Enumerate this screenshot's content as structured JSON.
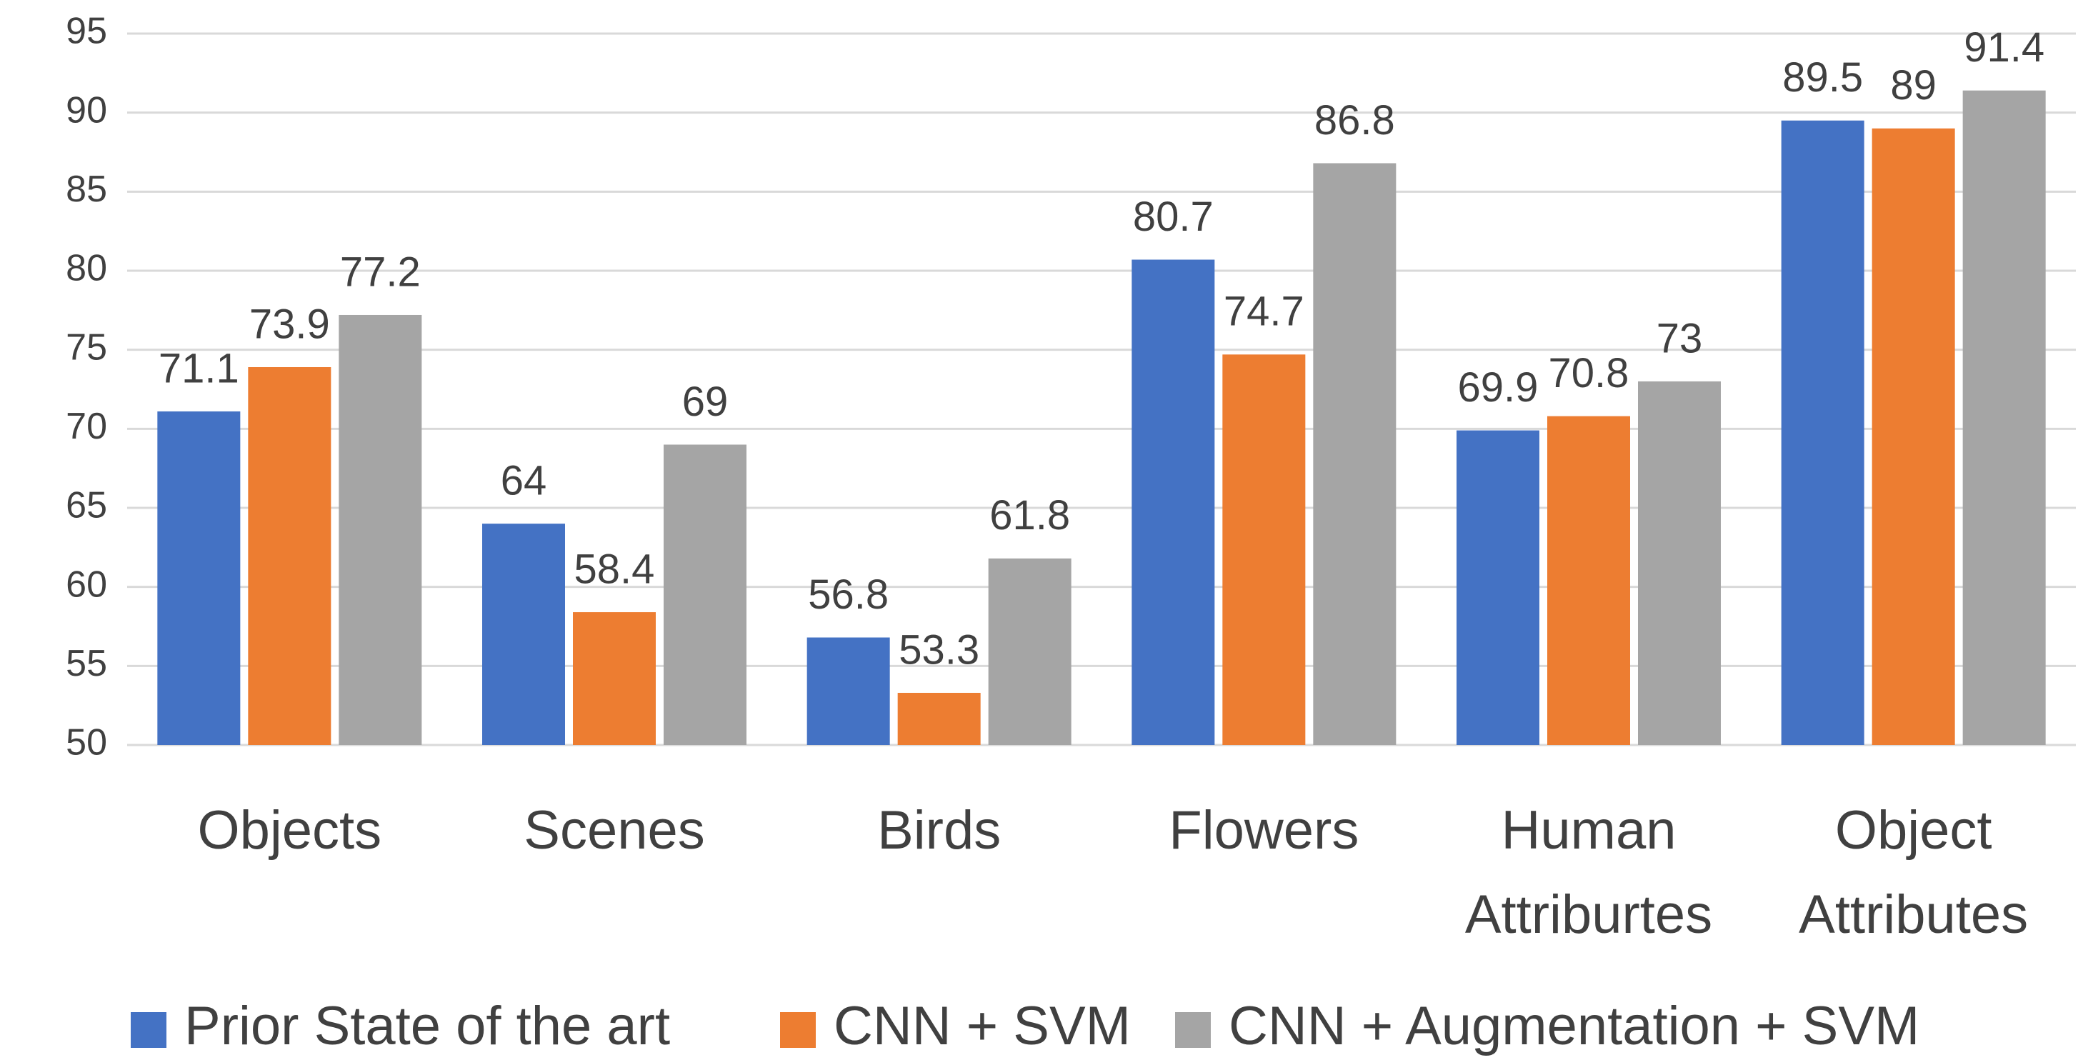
{
  "chart_data": {
    "type": "bar",
    "categories": [
      [
        "Objects"
      ],
      [
        "Scenes"
      ],
      [
        "Birds"
      ],
      [
        "Flowers"
      ],
      [
        "Human",
        "Attriburtes"
      ],
      [
        "Object",
        "Attributes"
      ]
    ],
    "series": [
      {
        "name": "Prior State of the art",
        "color": "#4472c4",
        "values": [
          71.1,
          64,
          56.8,
          80.7,
          69.9,
          89.5
        ]
      },
      {
        "name": "CNN + SVM",
        "color": "#ed7d31",
        "values": [
          73.9,
          58.4,
          53.3,
          74.7,
          70.8,
          89
        ]
      },
      {
        "name": "CNN + Augmentation + SVM",
        "color": "#a5a5a5",
        "values": [
          77.2,
          69,
          61.8,
          86.8,
          73,
          91.4
        ]
      }
    ],
    "ylim": [
      50,
      95
    ],
    "yticks": [
      50,
      55,
      60,
      65,
      70,
      75,
      80,
      85,
      90,
      95
    ],
    "grid": true,
    "legend": "bottom"
  }
}
